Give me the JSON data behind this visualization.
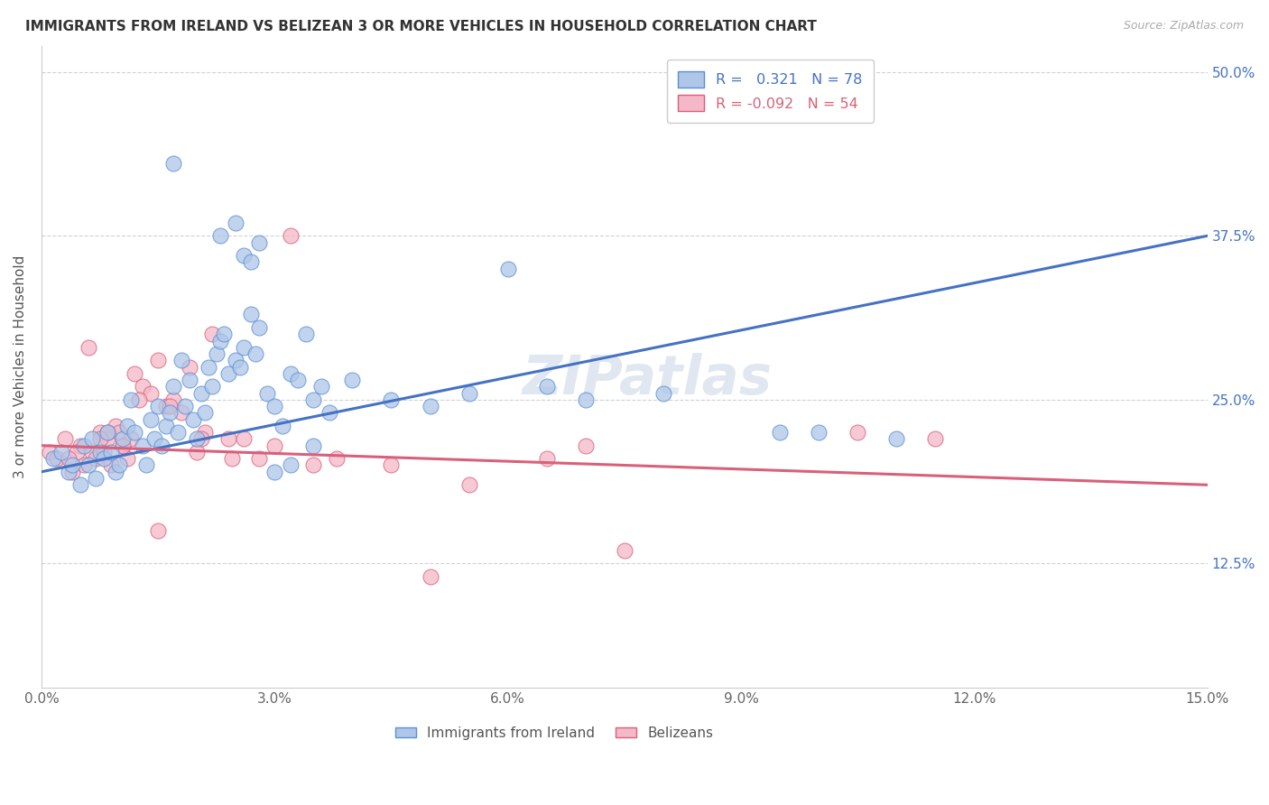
{
  "title": "IMMIGRANTS FROM IRELAND VS BELIZEAN 3 OR MORE VEHICLES IN HOUSEHOLD CORRELATION CHART",
  "source": "Source: ZipAtlas.com",
  "ylabel": "3 or more Vehicles in Household",
  "xlim": [
    0.0,
    15.0
  ],
  "ylim": [
    3.0,
    52.0
  ],
  "ytick_values": [
    12.5,
    25.0,
    37.5,
    50.0
  ],
  "xtick_values": [
    0.0,
    3.0,
    6.0,
    9.0,
    12.0,
    15.0
  ],
  "ireland_r": 0.321,
  "ireland_n": 78,
  "belizean_r": -0.092,
  "belizean_n": 54,
  "ireland_color": "#aec6e8",
  "ireland_edge_color": "#5b8fd4",
  "ireland_line_color": "#4472c4",
  "belizean_color": "#f4b8c8",
  "belizean_edge_color": "#d9607a",
  "belizean_line_color": "#d9607a",
  "ireland_line_x0": 0.0,
  "ireland_line_y0": 19.5,
  "ireland_line_x1": 15.0,
  "ireland_line_y1": 37.5,
  "belizean_line_x0": 0.0,
  "belizean_line_y0": 21.5,
  "belizean_line_x1": 15.0,
  "belizean_line_y1": 18.5,
  "ireland_x": [
    0.15,
    0.25,
    0.35,
    0.4,
    0.5,
    0.55,
    0.6,
    0.65,
    0.7,
    0.75,
    0.8,
    0.85,
    0.9,
    0.95,
    1.0,
    1.05,
    1.1,
    1.15,
    1.2,
    1.3,
    1.35,
    1.4,
    1.45,
    1.5,
    1.55,
    1.6,
    1.65,
    1.7,
    1.75,
    1.8,
    1.85,
    1.9,
    1.95,
    2.0,
    2.05,
    2.1,
    2.15,
    2.2,
    2.25,
    2.3,
    2.35,
    2.4,
    2.5,
    2.55,
    2.6,
    2.7,
    2.75,
    2.8,
    2.9,
    3.0,
    3.1,
    3.2,
    3.3,
    3.4,
    3.5,
    3.6,
    3.7,
    4.0,
    4.5,
    5.0,
    5.5,
    6.0,
    6.5,
    7.0,
    8.0,
    9.5,
    10.0,
    11.0,
    1.7,
    2.3,
    2.5,
    2.6,
    2.7,
    2.8,
    3.0,
    3.2,
    3.5
  ],
  "ireland_y": [
    20.5,
    21.0,
    19.5,
    20.0,
    18.5,
    21.5,
    20.0,
    22.0,
    19.0,
    21.0,
    20.5,
    22.5,
    21.0,
    19.5,
    20.0,
    22.0,
    23.0,
    25.0,
    22.5,
    21.5,
    20.0,
    23.5,
    22.0,
    24.5,
    21.5,
    23.0,
    24.0,
    26.0,
    22.5,
    28.0,
    24.5,
    26.5,
    23.5,
    22.0,
    25.5,
    24.0,
    27.5,
    26.0,
    28.5,
    29.5,
    30.0,
    27.0,
    28.0,
    27.5,
    29.0,
    31.5,
    28.5,
    30.5,
    25.5,
    24.5,
    23.0,
    27.0,
    26.5,
    30.0,
    25.0,
    26.0,
    24.0,
    26.5,
    25.0,
    24.5,
    25.5,
    35.0,
    26.0,
    25.0,
    25.5,
    22.5,
    22.5,
    22.0,
    43.0,
    37.5,
    38.5,
    36.0,
    35.5,
    37.0,
    19.5,
    20.0,
    21.5
  ],
  "belizean_x": [
    0.1,
    0.2,
    0.3,
    0.4,
    0.5,
    0.55,
    0.6,
    0.65,
    0.7,
    0.75,
    0.8,
    0.85,
    0.9,
    0.95,
    1.0,
    1.05,
    1.1,
    1.15,
    1.2,
    1.3,
    1.4,
    1.5,
    1.6,
    1.7,
    1.8,
    1.9,
    2.0,
    2.1,
    2.2,
    2.4,
    2.6,
    2.8,
    3.0,
    3.2,
    3.8,
    4.5,
    5.0,
    6.5,
    7.0,
    7.5,
    10.5,
    11.5,
    0.45,
    0.85,
    1.25,
    1.65,
    2.05,
    2.45,
    3.5,
    5.5,
    0.35,
    0.75,
    1.05,
    1.5
  ],
  "belizean_y": [
    21.0,
    20.5,
    22.0,
    19.5,
    21.5,
    20.0,
    29.0,
    21.0,
    20.5,
    22.5,
    21.0,
    22.0,
    20.0,
    23.0,
    22.5,
    21.5,
    20.5,
    22.0,
    27.0,
    26.0,
    25.5,
    28.0,
    24.5,
    25.0,
    24.0,
    27.5,
    21.0,
    22.5,
    30.0,
    22.0,
    22.0,
    20.5,
    21.5,
    37.5,
    20.5,
    20.0,
    11.5,
    20.5,
    21.5,
    13.5,
    22.5,
    22.0,
    21.0,
    22.5,
    25.0,
    24.5,
    22.0,
    20.5,
    20.0,
    18.5,
    20.5,
    22.0,
    21.5,
    15.0
  ]
}
